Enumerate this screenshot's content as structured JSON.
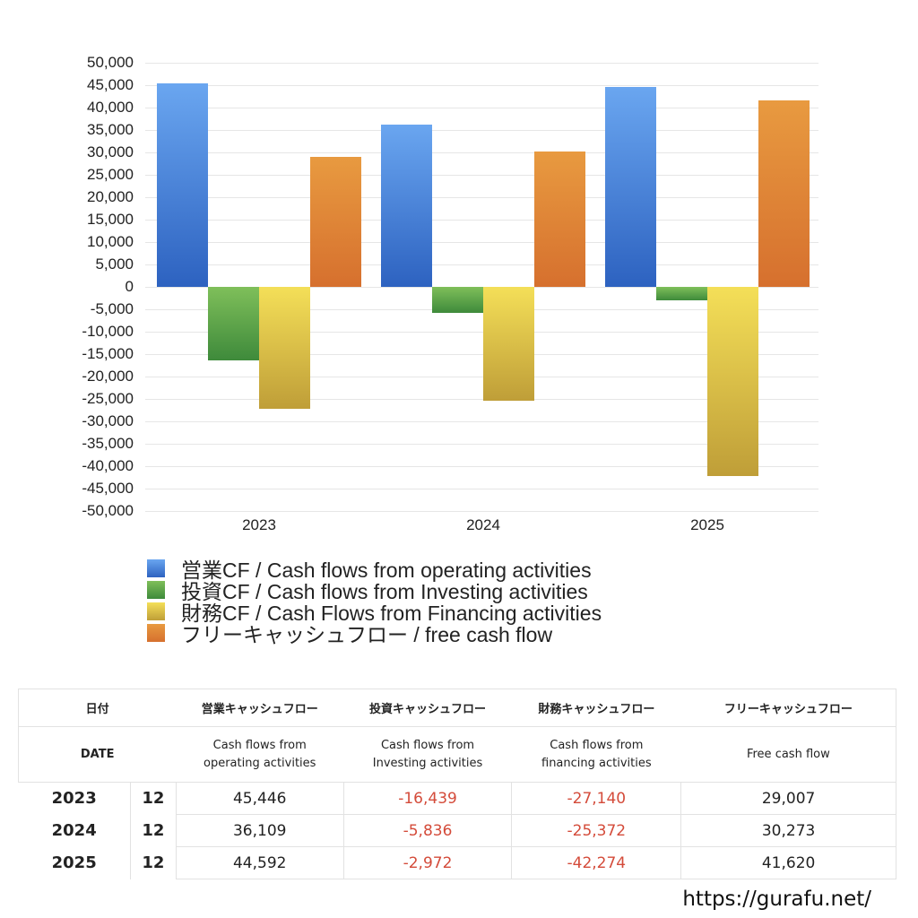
{
  "chart_data": {
    "type": "bar",
    "title": "",
    "xlabel": "",
    "ylabel": "",
    "categories": [
      "2023",
      "2024",
      "2025"
    ],
    "series": [
      {
        "name": "営業CF / Cash flows from operating activities",
        "values": [
          45446,
          36109,
          44592
        ],
        "color": "#3d78d8"
      },
      {
        "name": "投資CF / Cash flows from Investing activities",
        "values": [
          -16439,
          -5836,
          -2972
        ],
        "color": "#4f9a40"
      },
      {
        "name": "財務CF / Cash Flows from Financing activities",
        "values": [
          -27140,
          -25372,
          -42274
        ],
        "color": "#dcc04a"
      },
      {
        "name": "フリーキャッシュフロー / free cash flow",
        "values": [
          29007,
          30273,
          41620
        ],
        "color": "#df8a3a"
      }
    ],
    "ylim": [
      -50000,
      50000
    ],
    "yticks": [
      "50,000",
      "45,000",
      "40,000",
      "35,000",
      "30,000",
      "25,000",
      "20,000",
      "15,000",
      "10,000",
      "5,000",
      "0",
      "-5,000",
      "-10,000",
      "-15,000",
      "-20,000",
      "-25,000",
      "-30,000",
      "-35,000",
      "-40,000",
      "-45,000",
      "-50,000"
    ],
    "grid": true,
    "legend_position": "bottom"
  },
  "legend": [
    {
      "label": "営業CF / Cash flows from operating activities"
    },
    {
      "label": "投資CF / Cash flows from Investing activities"
    },
    {
      "label": "財務CF / Cash Flows from Financing activities"
    },
    {
      "label": "フリーキャッシュフロー / free cash flow"
    }
  ],
  "table": {
    "header_jp": [
      "日付",
      "営業キャッシュフロー",
      "投資キャッシュフロー",
      "財務キャッシュフロー",
      "フリーキャッシュフロー"
    ],
    "header_en": [
      "DATE",
      "Cash flows from\noperating activities",
      "Cash flows from\nInvesting activities",
      "Cash flows from\nfinancing activities",
      "Free cash flow"
    ],
    "rows": [
      {
        "year": "2023",
        "month": "12",
        "operating": "45,446",
        "investing": "-16,439",
        "financing": "-27,140",
        "free": "29,007"
      },
      {
        "year": "2024",
        "month": "12",
        "operating": "36,109",
        "investing": "-5,836",
        "financing": "-25,372",
        "free": "30,273"
      },
      {
        "year": "2025",
        "month": "12",
        "operating": "44,592",
        "investing": "-2,972",
        "financing": "-42,274",
        "free": "41,620"
      }
    ]
  },
  "footer": {
    "url": "https://gurafu.net/"
  }
}
